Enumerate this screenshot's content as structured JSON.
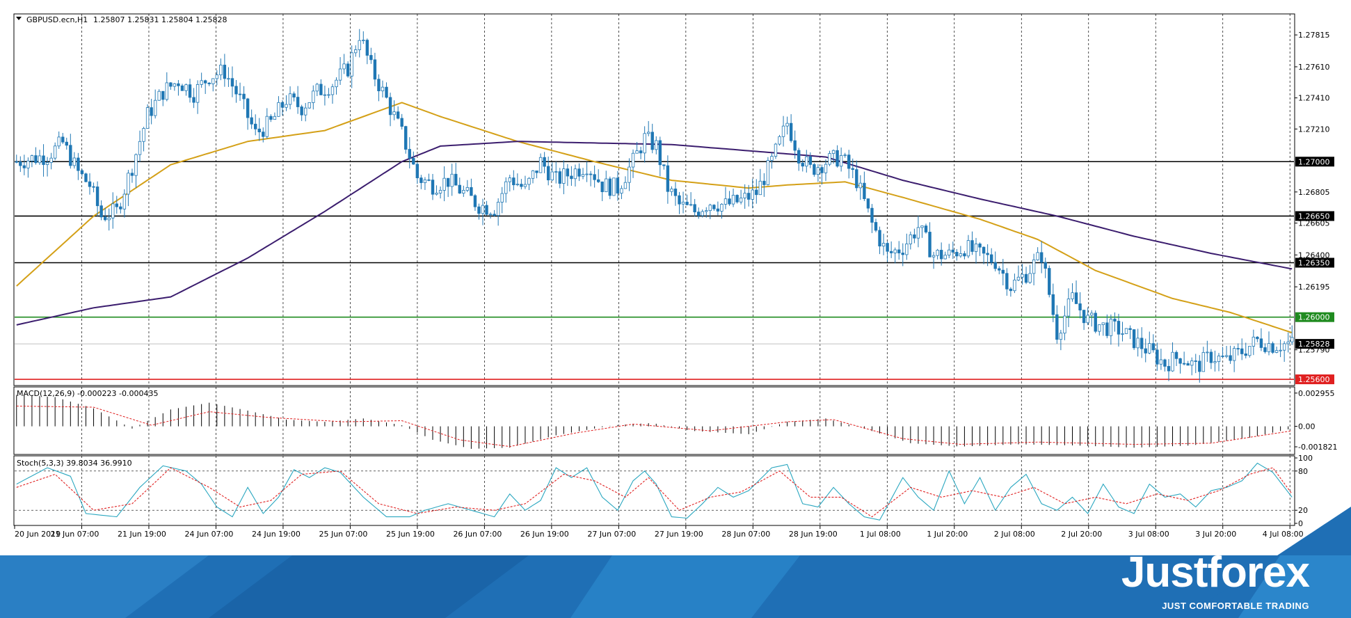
{
  "header": {
    "symbol": "GBPUSD.ecn,H1",
    "ohlc": "1.25807 1.25831 1.25804 1.25828"
  },
  "indicators": {
    "macd_label": "MACD(12,26,9) -0.000223 -0.000435",
    "stoch_label": "Stoch(5,3,3) 39.8034 36.9910"
  },
  "branding": {
    "name": "Justforex",
    "tagline": "JUST COMFORTABLE TRADING"
  },
  "colors": {
    "candle": "#1f77b4",
    "ma_fast": "#d4a017",
    "ma_slow": "#3b1d6e",
    "support_green": "#1f8b1f",
    "support_red": "#e02020",
    "level": "#000000",
    "macd_signal": "#e02020",
    "stoch_main": "#2aa7c0",
    "stoch_signal": "#e02020",
    "banner": "#1f6fb5"
  },
  "chart_data": {
    "type": "candlestick",
    "symbol": "GBPUSD.ecn",
    "timeframe": "H1",
    "price_axis": {
      "min": 1.2556,
      "max": 1.2795,
      "ticks": [
        "1.27815",
        "1.27610",
        "1.27410",
        "1.27210",
        "1.26805",
        "1.26605",
        "1.26400",
        "1.26195",
        "1.25790"
      ]
    },
    "time_labels": [
      "20 Jun 2019",
      "21 Jun 07:00",
      "21 Jun 19:00",
      "24 Jun 07:00",
      "24 Jun 19:00",
      "25 Jun 07:00",
      "25 Jun 19:00",
      "26 Jun 07:00",
      "26 Jun 19:00",
      "27 Jun 07:00",
      "27 Jun 19:00",
      "28 Jun 07:00",
      "28 Jun 19:00",
      "1 Jul 08:00",
      "1 Jul 20:00",
      "2 Jul 08:00",
      "2 Jul 20:00",
      "3 Jul 08:00",
      "3 Jul 20:00",
      "4 Jul 08:00"
    ],
    "horizontal_levels": [
      {
        "price": 1.27,
        "label": "1.27000",
        "color": "#000000"
      },
      {
        "price": 1.2665,
        "label": "1.26650",
        "color": "#000000"
      },
      {
        "price": 1.2635,
        "label": "1.26350",
        "color": "#000000"
      },
      {
        "price": 1.26,
        "label": "1.26000",
        "color": "#1f8b1f"
      },
      {
        "price": 1.256,
        "label": "1.25600",
        "color": "#e02020"
      }
    ],
    "current_price": {
      "price": 1.25828,
      "label": "1.25828"
    },
    "close_path": [
      [
        0,
        1.27
      ],
      [
        8,
        1.2704
      ],
      [
        12,
        1.2712
      ],
      [
        16,
        1.2693
      ],
      [
        19,
        1.2685
      ],
      [
        22,
        1.2665
      ],
      [
        26,
        1.2668
      ],
      [
        30,
        1.2697
      ],
      [
        34,
        1.273
      ],
      [
        38,
        1.2745
      ],
      [
        42,
        1.2752
      ],
      [
        46,
        1.2744
      ],
      [
        50,
        1.2755
      ],
      [
        54,
        1.2758
      ],
      [
        58,
        1.274
      ],
      [
        62,
        1.2718
      ],
      [
        66,
        1.2725
      ],
      [
        70,
        1.274
      ],
      [
        74,
        1.2735
      ],
      [
        78,
        1.2745
      ],
      [
        82,
        1.275
      ],
      [
        86,
        1.276
      ],
      [
        89,
        1.2782
      ],
      [
        92,
        1.276
      ],
      [
        96,
        1.274
      ],
      [
        100,
        1.2718
      ],
      [
        104,
        1.269
      ],
      [
        108,
        1.2685
      ],
      [
        112,
        1.2688
      ],
      [
        116,
        1.268
      ],
      [
        120,
        1.2672
      ],
      [
        124,
        1.267
      ],
      [
        128,
        1.269
      ],
      [
        132,
        1.2682
      ],
      [
        136,
        1.27
      ],
      [
        140,
        1.2688
      ],
      [
        144,
        1.2693
      ],
      [
        148,
        1.2698
      ],
      [
        152,
        1.2685
      ],
      [
        156,
        1.2683
      ],
      [
        160,
        1.27
      ],
      [
        163,
        1.2715
      ],
      [
        166,
        1.271
      ],
      [
        169,
        1.2683
      ],
      [
        172,
        1.2672
      ],
      [
        176,
        1.2668
      ],
      [
        180,
        1.2674
      ],
      [
        184,
        1.2672
      ],
      [
        188,
        1.2675
      ],
      [
        192,
        1.268
      ],
      [
        196,
        1.27
      ],
      [
        200,
        1.2725
      ],
      [
        203,
        1.2705
      ],
      [
        206,
        1.2695
      ],
      [
        210,
        1.27
      ],
      [
        214,
        1.2703
      ],
      [
        218,
        1.2688
      ],
      [
        222,
        1.266
      ],
      [
        226,
        1.264
      ],
      [
        230,
        1.2645
      ],
      [
        234,
        1.2658
      ],
      [
        238,
        1.264
      ],
      [
        242,
        1.264
      ],
      [
        246,
        1.2645
      ],
      [
        250,
        1.264
      ],
      [
        254,
        1.2636
      ],
      [
        258,
        1.262
      ],
      [
        262,
        1.2628
      ],
      [
        266,
        1.264
      ],
      [
        270,
        1.259
      ],
      [
        274,
        1.2612
      ],
      [
        278,
        1.2598
      ],
      [
        282,
        1.2594
      ],
      [
        286,
        1.2592
      ],
      [
        290,
        1.2585
      ],
      [
        294,
        1.2578
      ],
      [
        298,
        1.257
      ],
      [
        302,
        1.2575
      ],
      [
        306,
        1.2568
      ],
      [
        310,
        1.2575
      ],
      [
        314,
        1.2572
      ],
      [
        318,
        1.2578
      ],
      [
        322,
        1.2585
      ],
      [
        326,
        1.2582
      ],
      [
        330,
        1.2583
      ]
    ],
    "series": [
      {
        "name": "",
        "type": "moving_average",
        "color": "#d4a017"
      },
      {
        "name": "",
        "type": "moving_average",
        "color": "#3b1d6e"
      }
    ],
    "ma_fast": [
      [
        0,
        1.262
      ],
      [
        20,
        1.2665
      ],
      [
        40,
        1.2698
      ],
      [
        60,
        1.2713
      ],
      [
        80,
        1.272
      ],
      [
        100,
        1.2738
      ],
      [
        110,
        1.2729
      ],
      [
        130,
        1.2713
      ],
      [
        150,
        1.27
      ],
      [
        170,
        1.2688
      ],
      [
        190,
        1.2683
      ],
      [
        200,
        1.2685
      ],
      [
        215,
        1.2687
      ],
      [
        230,
        1.2677
      ],
      [
        250,
        1.2663
      ],
      [
        265,
        1.265
      ],
      [
        280,
        1.263
      ],
      [
        300,
        1.2612
      ],
      [
        315,
        1.2603
      ],
      [
        331,
        1.259
      ]
    ],
    "ma_slow": [
      [
        0,
        1.2595
      ],
      [
        20,
        1.2606
      ],
      [
        40,
        1.2613
      ],
      [
        60,
        1.2638
      ],
      [
        80,
        1.2668
      ],
      [
        100,
        1.27
      ],
      [
        110,
        1.271
      ],
      [
        130,
        1.2713
      ],
      [
        150,
        1.2712
      ],
      [
        170,
        1.2711
      ],
      [
        190,
        1.2707
      ],
      [
        210,
        1.2703
      ],
      [
        230,
        1.2688
      ],
      [
        250,
        1.2676
      ],
      [
        270,
        1.2665
      ],
      [
        290,
        1.2652
      ],
      [
        310,
        1.2641
      ],
      [
        331,
        1.2631
      ]
    ],
    "macd": {
      "axis_ticks": [
        "0.002955",
        "0.00",
        "-0.001821"
      ],
      "range": [
        -0.0025,
        0.0035
      ],
      "histogram_path": [
        [
          0,
          0.0028
        ],
        [
          10,
          0.0026
        ],
        [
          20,
          0.0016
        ],
        [
          30,
          -0.0002
        ],
        [
          40,
          0.0015
        ],
        [
          50,
          0.0021
        ],
        [
          60,
          0.0014
        ],
        [
          70,
          0.0006
        ],
        [
          80,
          0.0004
        ],
        [
          90,
          0.0007
        ],
        [
          100,
          0.0001
        ],
        [
          108,
          -0.0012
        ],
        [
          118,
          -0.002
        ],
        [
          128,
          -0.0019
        ],
        [
          140,
          -0.0008
        ],
        [
          155,
          0.0001
        ],
        [
          165,
          0.0003
        ],
        [
          175,
          -0.0004
        ],
        [
          190,
          -0.0007
        ],
        [
          200,
          0.0004
        ],
        [
          210,
          0.0007
        ],
        [
          220,
          -0.0002
        ],
        [
          232,
          -0.0015
        ],
        [
          245,
          -0.0018
        ],
        [
          260,
          -0.0016
        ],
        [
          275,
          -0.0017
        ],
        [
          290,
          -0.0019
        ],
        [
          305,
          -0.0017
        ],
        [
          320,
          -0.001
        ],
        [
          331,
          -0.0002
        ]
      ],
      "signal_path": [
        [
          0,
          0.0018
        ],
        [
          20,
          0.0017
        ],
        [
          35,
          0.0001
        ],
        [
          50,
          0.0013
        ],
        [
          65,
          0.0008
        ],
        [
          85,
          0.0004
        ],
        [
          100,
          0.0005
        ],
        [
          115,
          -0.0012
        ],
        [
          128,
          -0.0018
        ],
        [
          145,
          -0.0006
        ],
        [
          160,
          0.0002
        ],
        [
          180,
          -0.0004
        ],
        [
          200,
          0.0004
        ],
        [
          212,
          0.0006
        ],
        [
          230,
          -0.0011
        ],
        [
          245,
          -0.0016
        ],
        [
          265,
          -0.0014
        ],
        [
          290,
          -0.0016
        ],
        [
          310,
          -0.0015
        ],
        [
          331,
          -0.0004
        ]
      ]
    },
    "stochastic": {
      "axis_ticks": [
        "100",
        "80",
        "20",
        "0"
      ],
      "levels": [
        80,
        20
      ],
      "main_path": [
        [
          0,
          60
        ],
        [
          8,
          85
        ],
        [
          14,
          72
        ],
        [
          18,
          15
        ],
        [
          26,
          10
        ],
        [
          32,
          55
        ],
        [
          38,
          88
        ],
        [
          44,
          80
        ],
        [
          48,
          60
        ],
        [
          52,
          25
        ],
        [
          56,
          10
        ],
        [
          60,
          55
        ],
        [
          64,
          15
        ],
        [
          68,
          40
        ],
        [
          72,
          82
        ],
        [
          76,
          70
        ],
        [
          80,
          85
        ],
        [
          84,
          78
        ],
        [
          90,
          40
        ],
        [
          96,
          10
        ],
        [
          102,
          10
        ],
        [
          106,
          20
        ],
        [
          112,
          30
        ],
        [
          118,
          20
        ],
        [
          124,
          10
        ],
        [
          128,
          45
        ],
        [
          132,
          20
        ],
        [
          136,
          35
        ],
        [
          140,
          85
        ],
        [
          144,
          70
        ],
        [
          148,
          85
        ],
        [
          152,
          40
        ],
        [
          156,
          20
        ],
        [
          160,
          65
        ],
        [
          163,
          80
        ],
        [
          166,
          60
        ],
        [
          170,
          10
        ],
        [
          174,
          8
        ],
        [
          178,
          30
        ],
        [
          182,
          55
        ],
        [
          186,
          40
        ],
        [
          190,
          50
        ],
        [
          196,
          85
        ],
        [
          200,
          90
        ],
        [
          204,
          30
        ],
        [
          208,
          25
        ],
        [
          212,
          55
        ],
        [
          216,
          30
        ],
        [
          220,
          10
        ],
        [
          224,
          5
        ],
        [
          230,
          70
        ],
        [
          234,
          40
        ],
        [
          238,
          20
        ],
        [
          242,
          80
        ],
        [
          246,
          30
        ],
        [
          250,
          70
        ],
        [
          254,
          20
        ],
        [
          258,
          55
        ],
        [
          262,
          75
        ],
        [
          266,
          30
        ],
        [
          270,
          20
        ],
        [
          274,
          40
        ],
        [
          278,
          15
        ],
        [
          282,
          60
        ],
        [
          286,
          25
        ],
        [
          290,
          15
        ],
        [
          294,
          60
        ],
        [
          298,
          40
        ],
        [
          302,
          45
        ],
        [
          306,
          25
        ],
        [
          310,
          50
        ],
        [
          314,
          55
        ],
        [
          318,
          65
        ],
        [
          322,
          92
        ],
        [
          326,
          78
        ],
        [
          331,
          40
        ]
      ],
      "signal_path": [
        [
          0,
          55
        ],
        [
          10,
          75
        ],
        [
          20,
          20
        ],
        [
          30,
          30
        ],
        [
          40,
          85
        ],
        [
          50,
          55
        ],
        [
          58,
          25
        ],
        [
          66,
          35
        ],
        [
          74,
          75
        ],
        [
          84,
          80
        ],
        [
          94,
          30
        ],
        [
          104,
          15
        ],
        [
          114,
          25
        ],
        [
          124,
          20
        ],
        [
          132,
          30
        ],
        [
          142,
          75
        ],
        [
          150,
          65
        ],
        [
          158,
          40
        ],
        [
          164,
          70
        ],
        [
          172,
          20
        ],
        [
          180,
          40
        ],
        [
          188,
          48
        ],
        [
          198,
          80
        ],
        [
          206,
          40
        ],
        [
          214,
          40
        ],
        [
          222,
          10
        ],
        [
          232,
          55
        ],
        [
          240,
          40
        ],
        [
          248,
          50
        ],
        [
          256,
          40
        ],
        [
          264,
          55
        ],
        [
          272,
          30
        ],
        [
          280,
          40
        ],
        [
          288,
          30
        ],
        [
          296,
          45
        ],
        [
          304,
          35
        ],
        [
          312,
          50
        ],
        [
          320,
          75
        ],
        [
          326,
          85
        ],
        [
          331,
          45
        ]
      ]
    }
  }
}
